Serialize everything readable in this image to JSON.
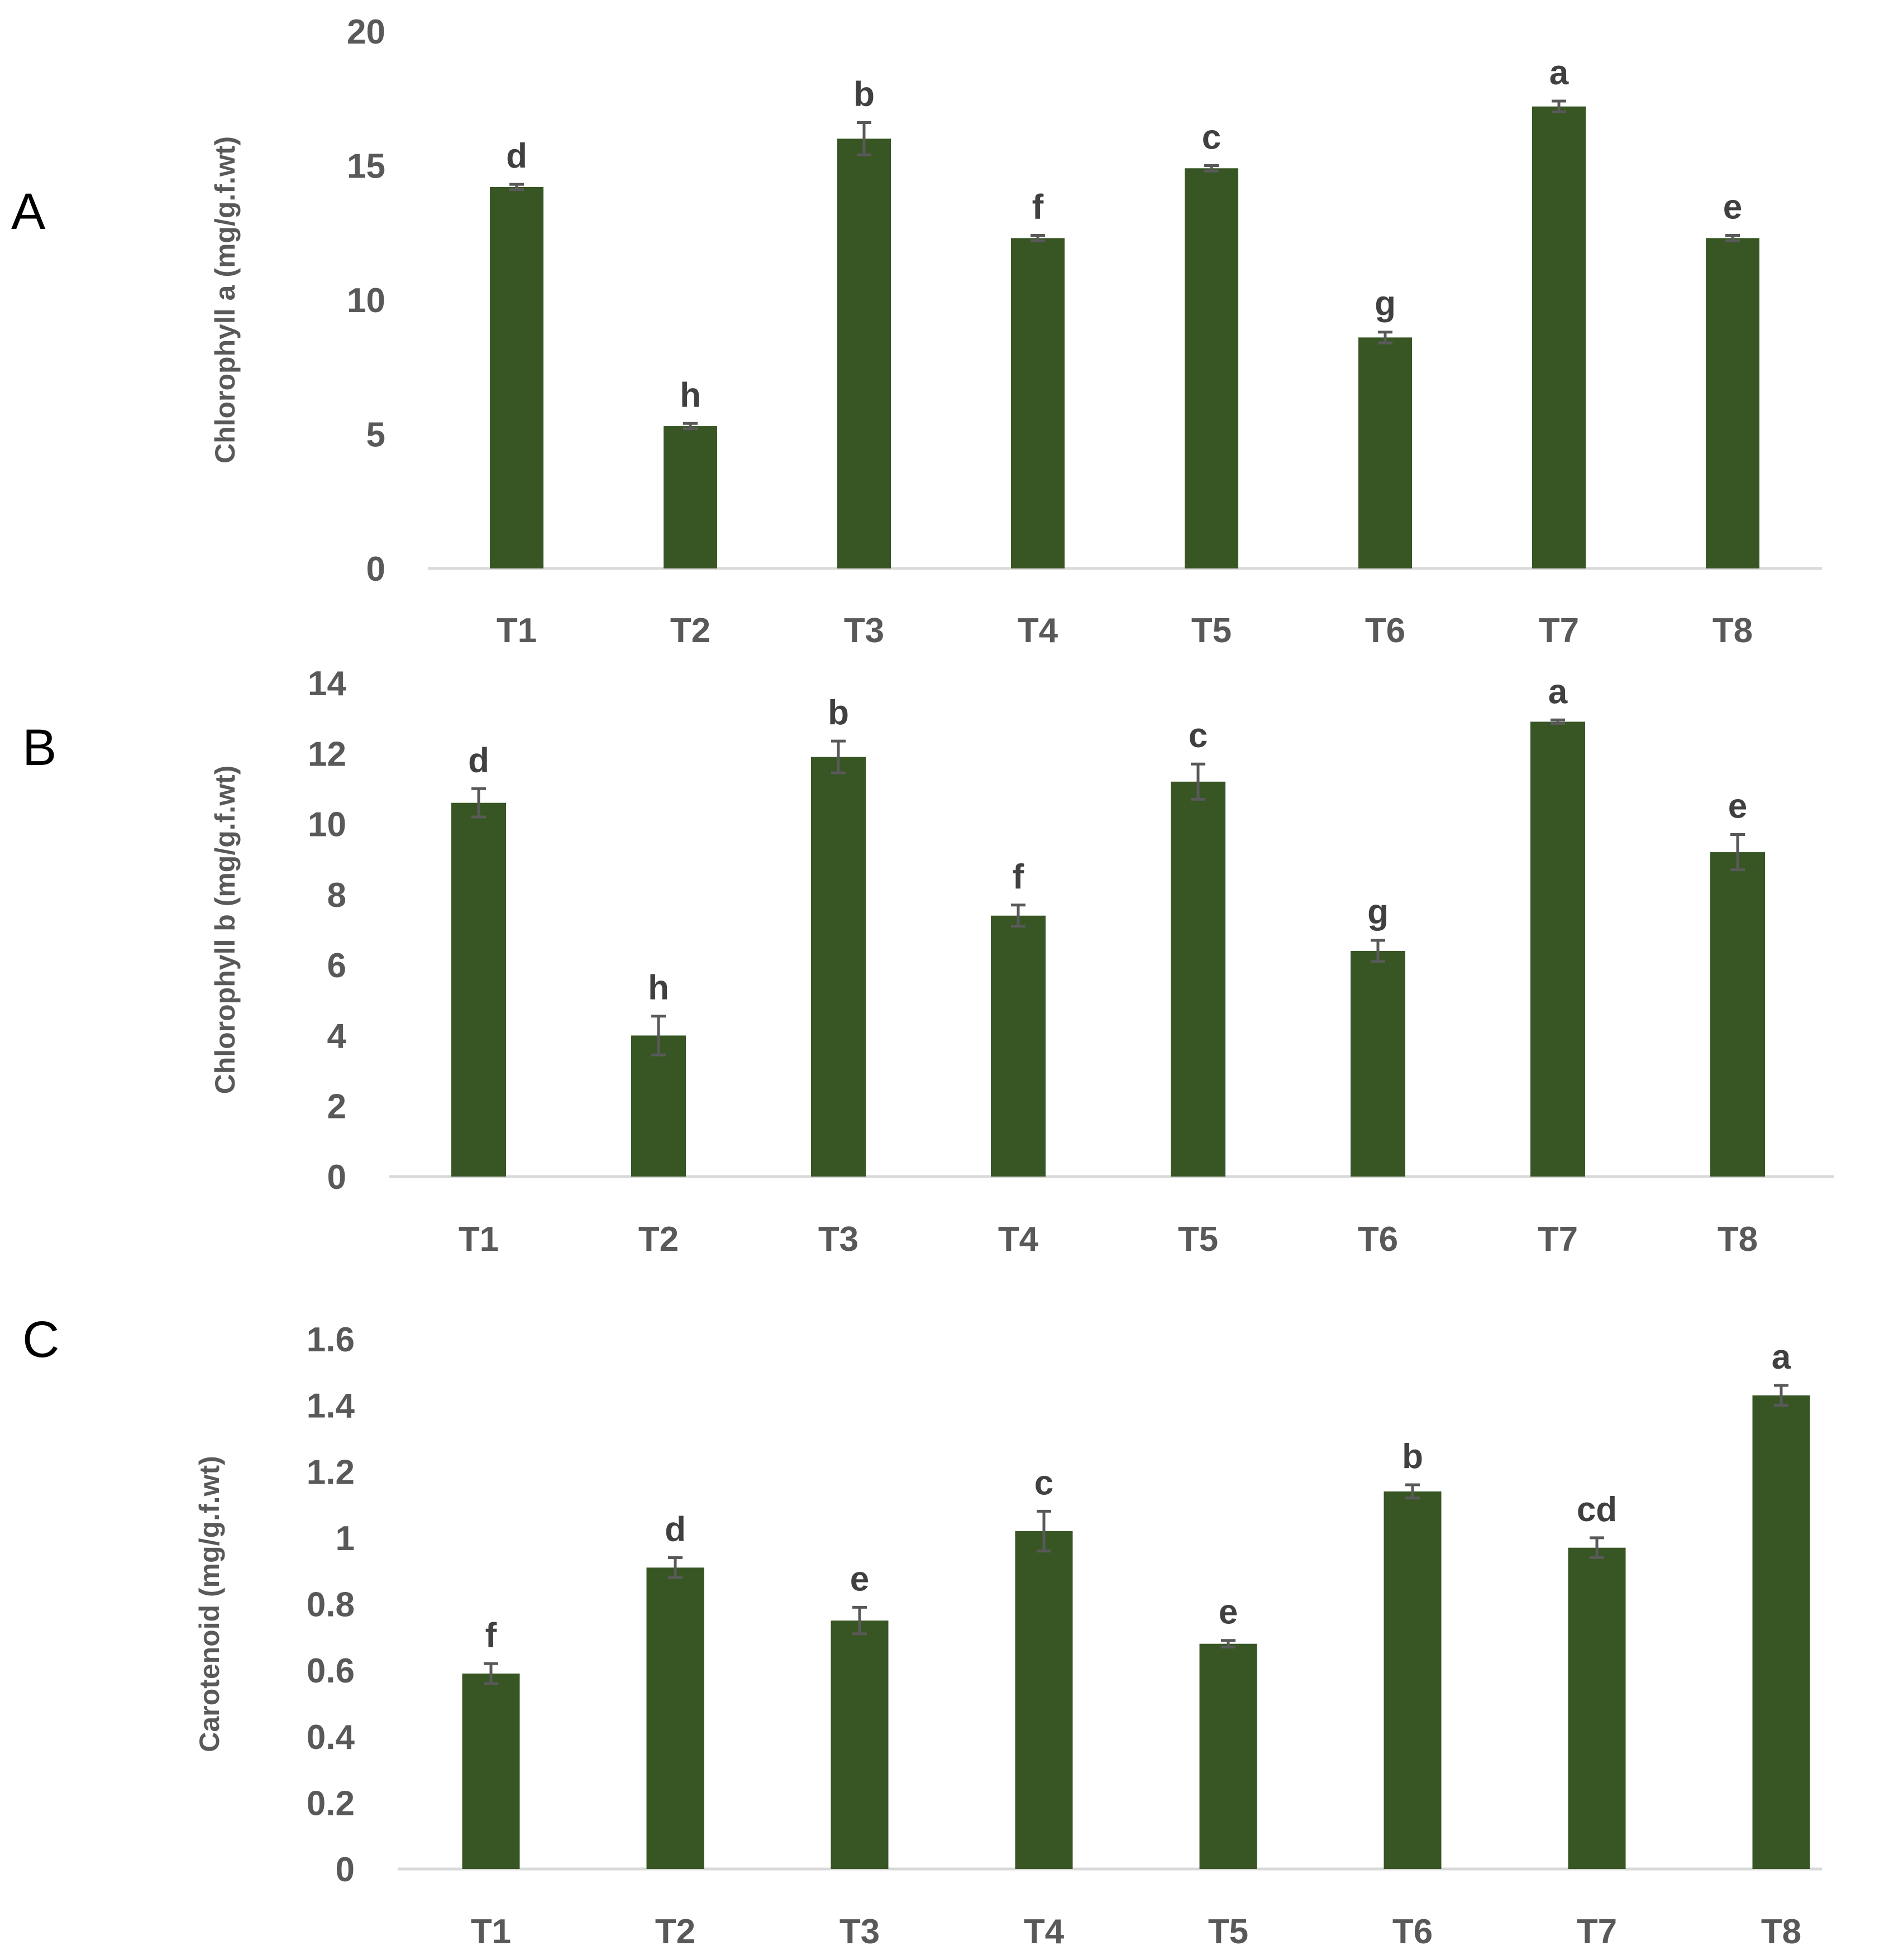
{
  "chart_data": [
    {
      "type": "bar",
      "panel": "A",
      "title": "",
      "xlabel": "",
      "ylabel": "Chlorophyll a (mg/g.f.wt)",
      "categories": [
        "T1",
        "T2",
        "T3",
        "T4",
        "T5",
        "T6",
        "T7",
        "T8"
      ],
      "values": [
        14.2,
        5.3,
        16.0,
        12.3,
        14.9,
        8.6,
        17.2,
        12.3
      ],
      "errors": [
        0.1,
        0.1,
        0.6,
        0.1,
        0.1,
        0.2,
        0.2,
        0.1
      ],
      "significance": [
        "d",
        "h",
        "b",
        "f",
        "c",
        "g",
        "a",
        "e"
      ],
      "ylim": [
        0,
        20
      ],
      "yticks": [
        0,
        5,
        10,
        15,
        20
      ],
      "ytick_labels": [
        "0",
        "5",
        "10",
        "15",
        "20"
      ],
      "grid": false,
      "bar_color": "#375623"
    },
    {
      "type": "bar",
      "panel": "B",
      "title": "",
      "xlabel": "",
      "ylabel": "Chlorophyll b (mg/g.f.wt)",
      "categories": [
        "T1",
        "T2",
        "T3",
        "T4",
        "T5",
        "T6",
        "T7",
        "T8"
      ],
      "values": [
        10.6,
        4.0,
        11.9,
        7.4,
        11.2,
        6.4,
        12.9,
        9.2
      ],
      "errors": [
        0.4,
        0.55,
        0.45,
        0.3,
        0.5,
        0.3,
        0.05,
        0.5
      ],
      "significance": [
        "d",
        "h",
        "b",
        "f",
        "c",
        "g",
        "a",
        "e"
      ],
      "ylim": [
        0,
        14
      ],
      "yticks": [
        0,
        2,
        4,
        6,
        8,
        10,
        12,
        14
      ],
      "ytick_labels": [
        "0",
        "2",
        "4",
        "6",
        "8",
        "10",
        "12",
        "14"
      ],
      "grid": false,
      "bar_color": "#375623"
    },
    {
      "type": "bar",
      "panel": "C",
      "title": "",
      "xlabel": "",
      "ylabel": "Carotenoid (mg/g.f.wt)",
      "categories": [
        "T1",
        "T2",
        "T3",
        "T4",
        "T5",
        "T6",
        "T7",
        "T8"
      ],
      "values": [
        0.59,
        0.91,
        0.75,
        1.02,
        0.68,
        1.14,
        0.97,
        1.43
      ],
      "errors": [
        0.03,
        0.03,
        0.04,
        0.06,
        0.01,
        0.02,
        0.03,
        0.03
      ],
      "significance": [
        "f",
        "d",
        "e",
        "c",
        "e",
        "b",
        "cd",
        "a"
      ],
      "ylim": [
        0,
        1.6
      ],
      "yticks": [
        0,
        0.2,
        0.4,
        0.6,
        0.8,
        1.0,
        1.2,
        1.4,
        1.6
      ],
      "ytick_labels": [
        "0",
        "0.2",
        "0.4",
        "0.6",
        "0.8",
        "1",
        "1.2",
        "1.4",
        "1.6"
      ],
      "grid": false,
      "bar_color": "#375623"
    }
  ]
}
